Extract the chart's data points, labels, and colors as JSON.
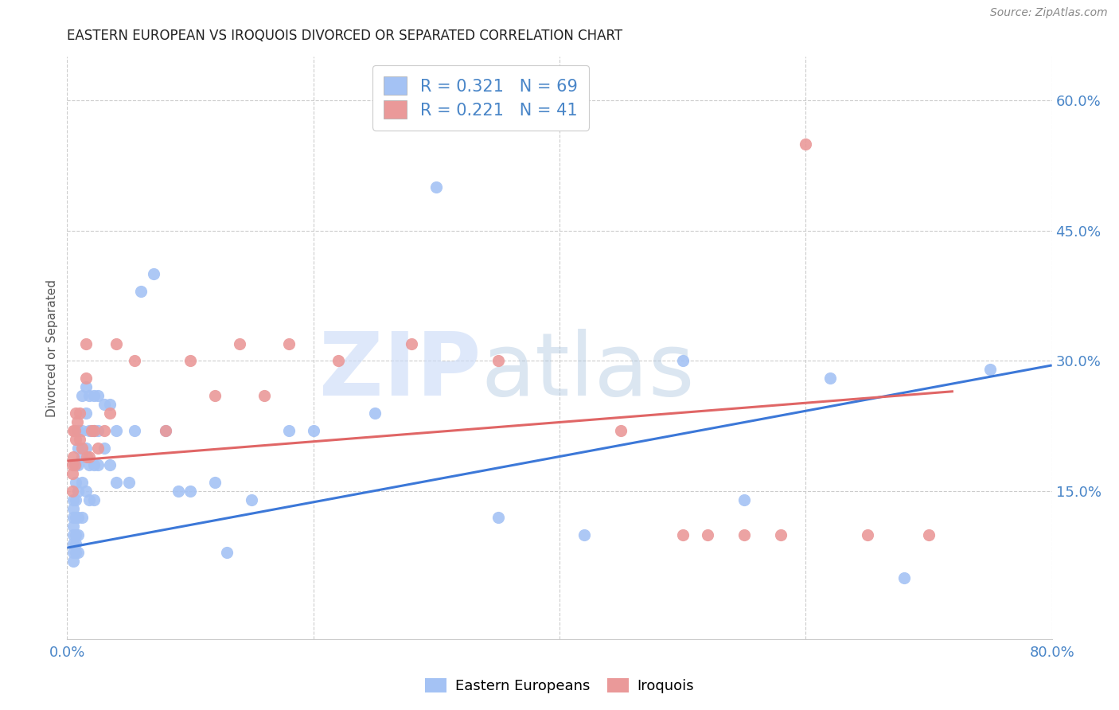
{
  "title": "EASTERN EUROPEAN VS IROQUOIS DIVORCED OR SEPARATED CORRELATION CHART",
  "source": "Source: ZipAtlas.com",
  "ylabel": "Divorced or Separated",
  "xlim": [
    0.0,
    0.8
  ],
  "ylim": [
    -0.02,
    0.65
  ],
  "x_ticks": [
    0.0,
    0.2,
    0.4,
    0.6,
    0.8
  ],
  "y_ticks_right": [
    0.15,
    0.3,
    0.45,
    0.6
  ],
  "blue_color": "#a4c2f4",
  "pink_color": "#ea9999",
  "blue_line_color": "#3c78d8",
  "pink_line_color": "#e06666",
  "legend_blue_label": "Eastern Europeans",
  "legend_pink_label": "Iroquois",
  "R_blue": "0.321",
  "N_blue": "69",
  "R_pink": "0.221",
  "N_pink": "41",
  "blue_scatter_x": [
    0.005,
    0.005,
    0.005,
    0.005,
    0.005,
    0.005,
    0.005,
    0.005,
    0.007,
    0.007,
    0.007,
    0.007,
    0.007,
    0.007,
    0.007,
    0.009,
    0.009,
    0.009,
    0.009,
    0.009,
    0.009,
    0.009,
    0.012,
    0.012,
    0.012,
    0.012,
    0.012,
    0.015,
    0.015,
    0.015,
    0.015,
    0.018,
    0.018,
    0.018,
    0.018,
    0.022,
    0.022,
    0.022,
    0.022,
    0.025,
    0.025,
    0.025,
    0.03,
    0.03,
    0.035,
    0.035,
    0.04,
    0.04,
    0.05,
    0.055,
    0.06,
    0.07,
    0.08,
    0.09,
    0.1,
    0.12,
    0.13,
    0.15,
    0.18,
    0.2,
    0.25,
    0.3,
    0.35,
    0.42,
    0.5,
    0.55,
    0.62,
    0.68,
    0.75
  ],
  "blue_scatter_y": [
    0.14,
    0.13,
    0.12,
    0.11,
    0.1,
    0.09,
    0.08,
    0.07,
    0.18,
    0.16,
    0.14,
    0.12,
    0.1,
    0.09,
    0.08,
    0.22,
    0.2,
    0.18,
    0.15,
    0.12,
    0.1,
    0.08,
    0.26,
    0.22,
    0.19,
    0.16,
    0.12,
    0.27,
    0.24,
    0.2,
    0.15,
    0.26,
    0.22,
    0.18,
    0.14,
    0.26,
    0.22,
    0.18,
    0.14,
    0.26,
    0.22,
    0.18,
    0.25,
    0.2,
    0.25,
    0.18,
    0.22,
    0.16,
    0.16,
    0.22,
    0.38,
    0.4,
    0.22,
    0.15,
    0.15,
    0.16,
    0.08,
    0.14,
    0.22,
    0.22,
    0.24,
    0.5,
    0.12,
    0.1,
    0.3,
    0.14,
    0.28,
    0.05,
    0.29
  ],
  "pink_scatter_x": [
    0.004,
    0.004,
    0.004,
    0.005,
    0.005,
    0.006,
    0.006,
    0.007,
    0.007,
    0.008,
    0.01,
    0.01,
    0.012,
    0.015,
    0.015,
    0.016,
    0.018,
    0.02,
    0.022,
    0.025,
    0.03,
    0.035,
    0.04,
    0.055,
    0.08,
    0.1,
    0.12,
    0.14,
    0.16,
    0.18,
    0.22,
    0.28,
    0.35,
    0.45,
    0.5,
    0.52,
    0.55,
    0.58,
    0.6,
    0.65,
    0.7
  ],
  "pink_scatter_y": [
    0.18,
    0.17,
    0.15,
    0.22,
    0.19,
    0.22,
    0.18,
    0.24,
    0.21,
    0.23,
    0.24,
    0.21,
    0.2,
    0.32,
    0.28,
    0.19,
    0.19,
    0.22,
    0.22,
    0.2,
    0.22,
    0.24,
    0.32,
    0.3,
    0.22,
    0.3,
    0.26,
    0.32,
    0.26,
    0.32,
    0.3,
    0.32,
    0.3,
    0.22,
    0.1,
    0.1,
    0.1,
    0.1,
    0.55,
    0.1,
    0.1
  ],
  "blue_trend_x": [
    0.0,
    0.8
  ],
  "blue_trend_y": [
    0.085,
    0.295
  ],
  "pink_trend_x": [
    0.0,
    0.72
  ],
  "pink_trend_y": [
    0.185,
    0.265
  ],
  "grid_color": "#cccccc",
  "tick_color": "#4a86c8",
  "title_fontsize": 12,
  "source_fontsize": 10,
  "axis_label_fontsize": 11,
  "tick_fontsize": 13
}
